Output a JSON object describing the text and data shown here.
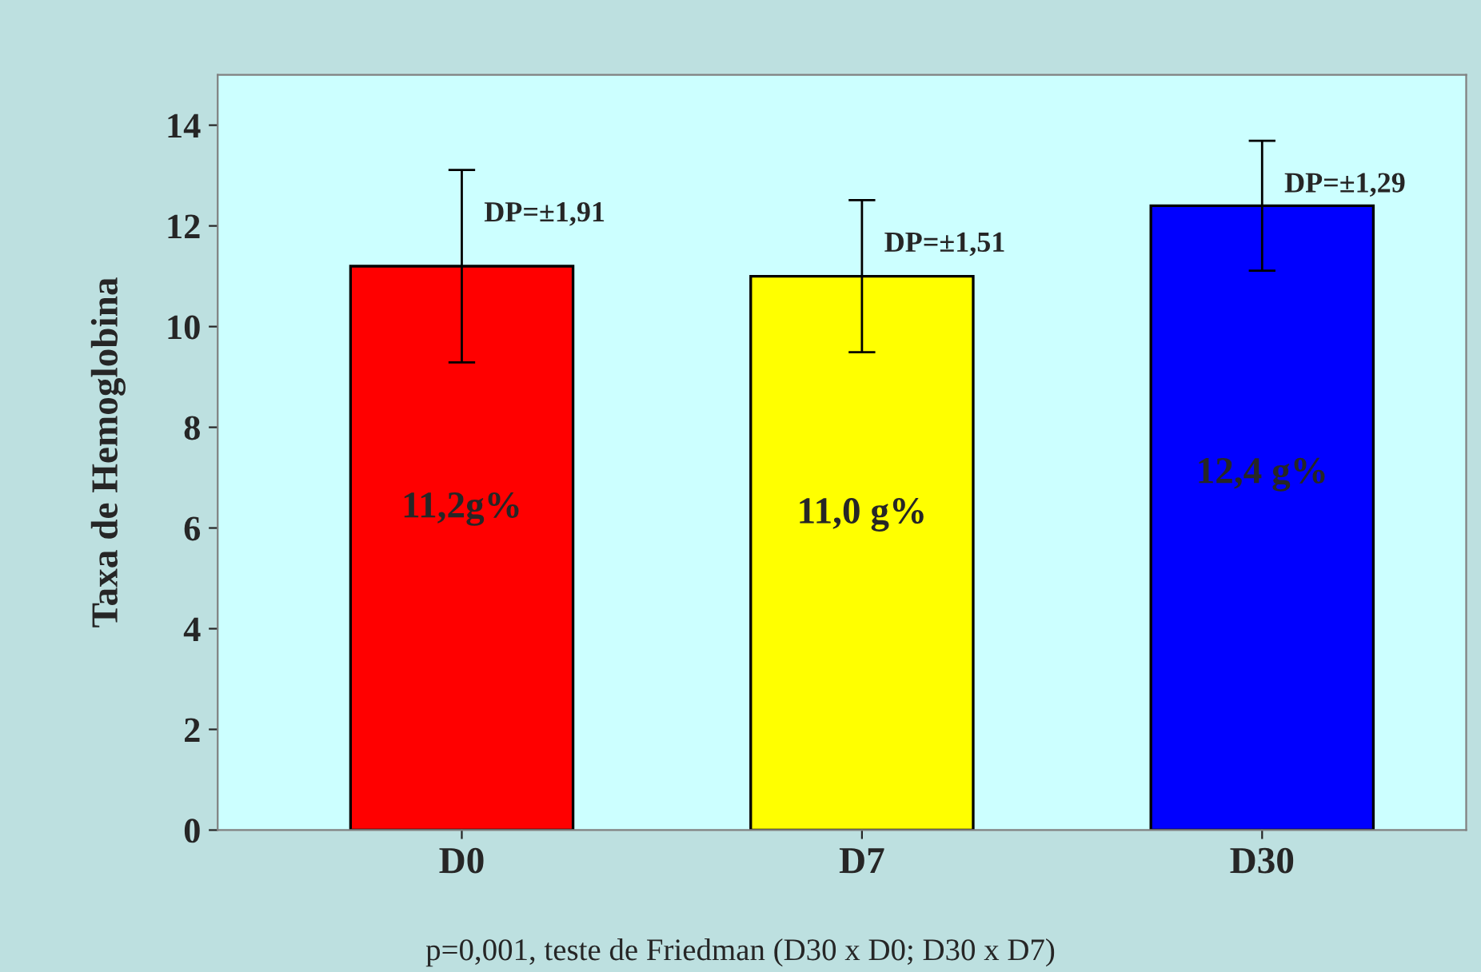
{
  "chart_data": {
    "type": "bar",
    "ylabel": "Taxa de Hemoglobina",
    "categories": [
      "D0",
      "D7",
      "D30"
    ],
    "values": [
      11.2,
      11.0,
      12.4
    ],
    "colors": [
      "#ff0000",
      "#ffff00",
      "#0000ff"
    ],
    "errors": [
      1.91,
      1.51,
      1.29
    ],
    "value_labels": [
      "11,2g%",
      "11,0 g%",
      "12,4 g%"
    ],
    "ylim": [
      0,
      15
    ],
    "yticks": [
      0,
      2,
      4,
      6,
      8,
      10,
      12,
      14
    ],
    "grid": false,
    "legend": false,
    "annotations": [
      {
        "text": "DP=±1,91",
        "x": "D0",
        "y": 13.11
      },
      {
        "text": "DP=±1,51",
        "x": "D7",
        "y": 12.51
      },
      {
        "text": "DP=±1,29",
        "x": "D30",
        "y": 13.69
      },
      "p=0,001, teste de Friedman (D30 x D0; D30 x D7)"
    ]
  }
}
